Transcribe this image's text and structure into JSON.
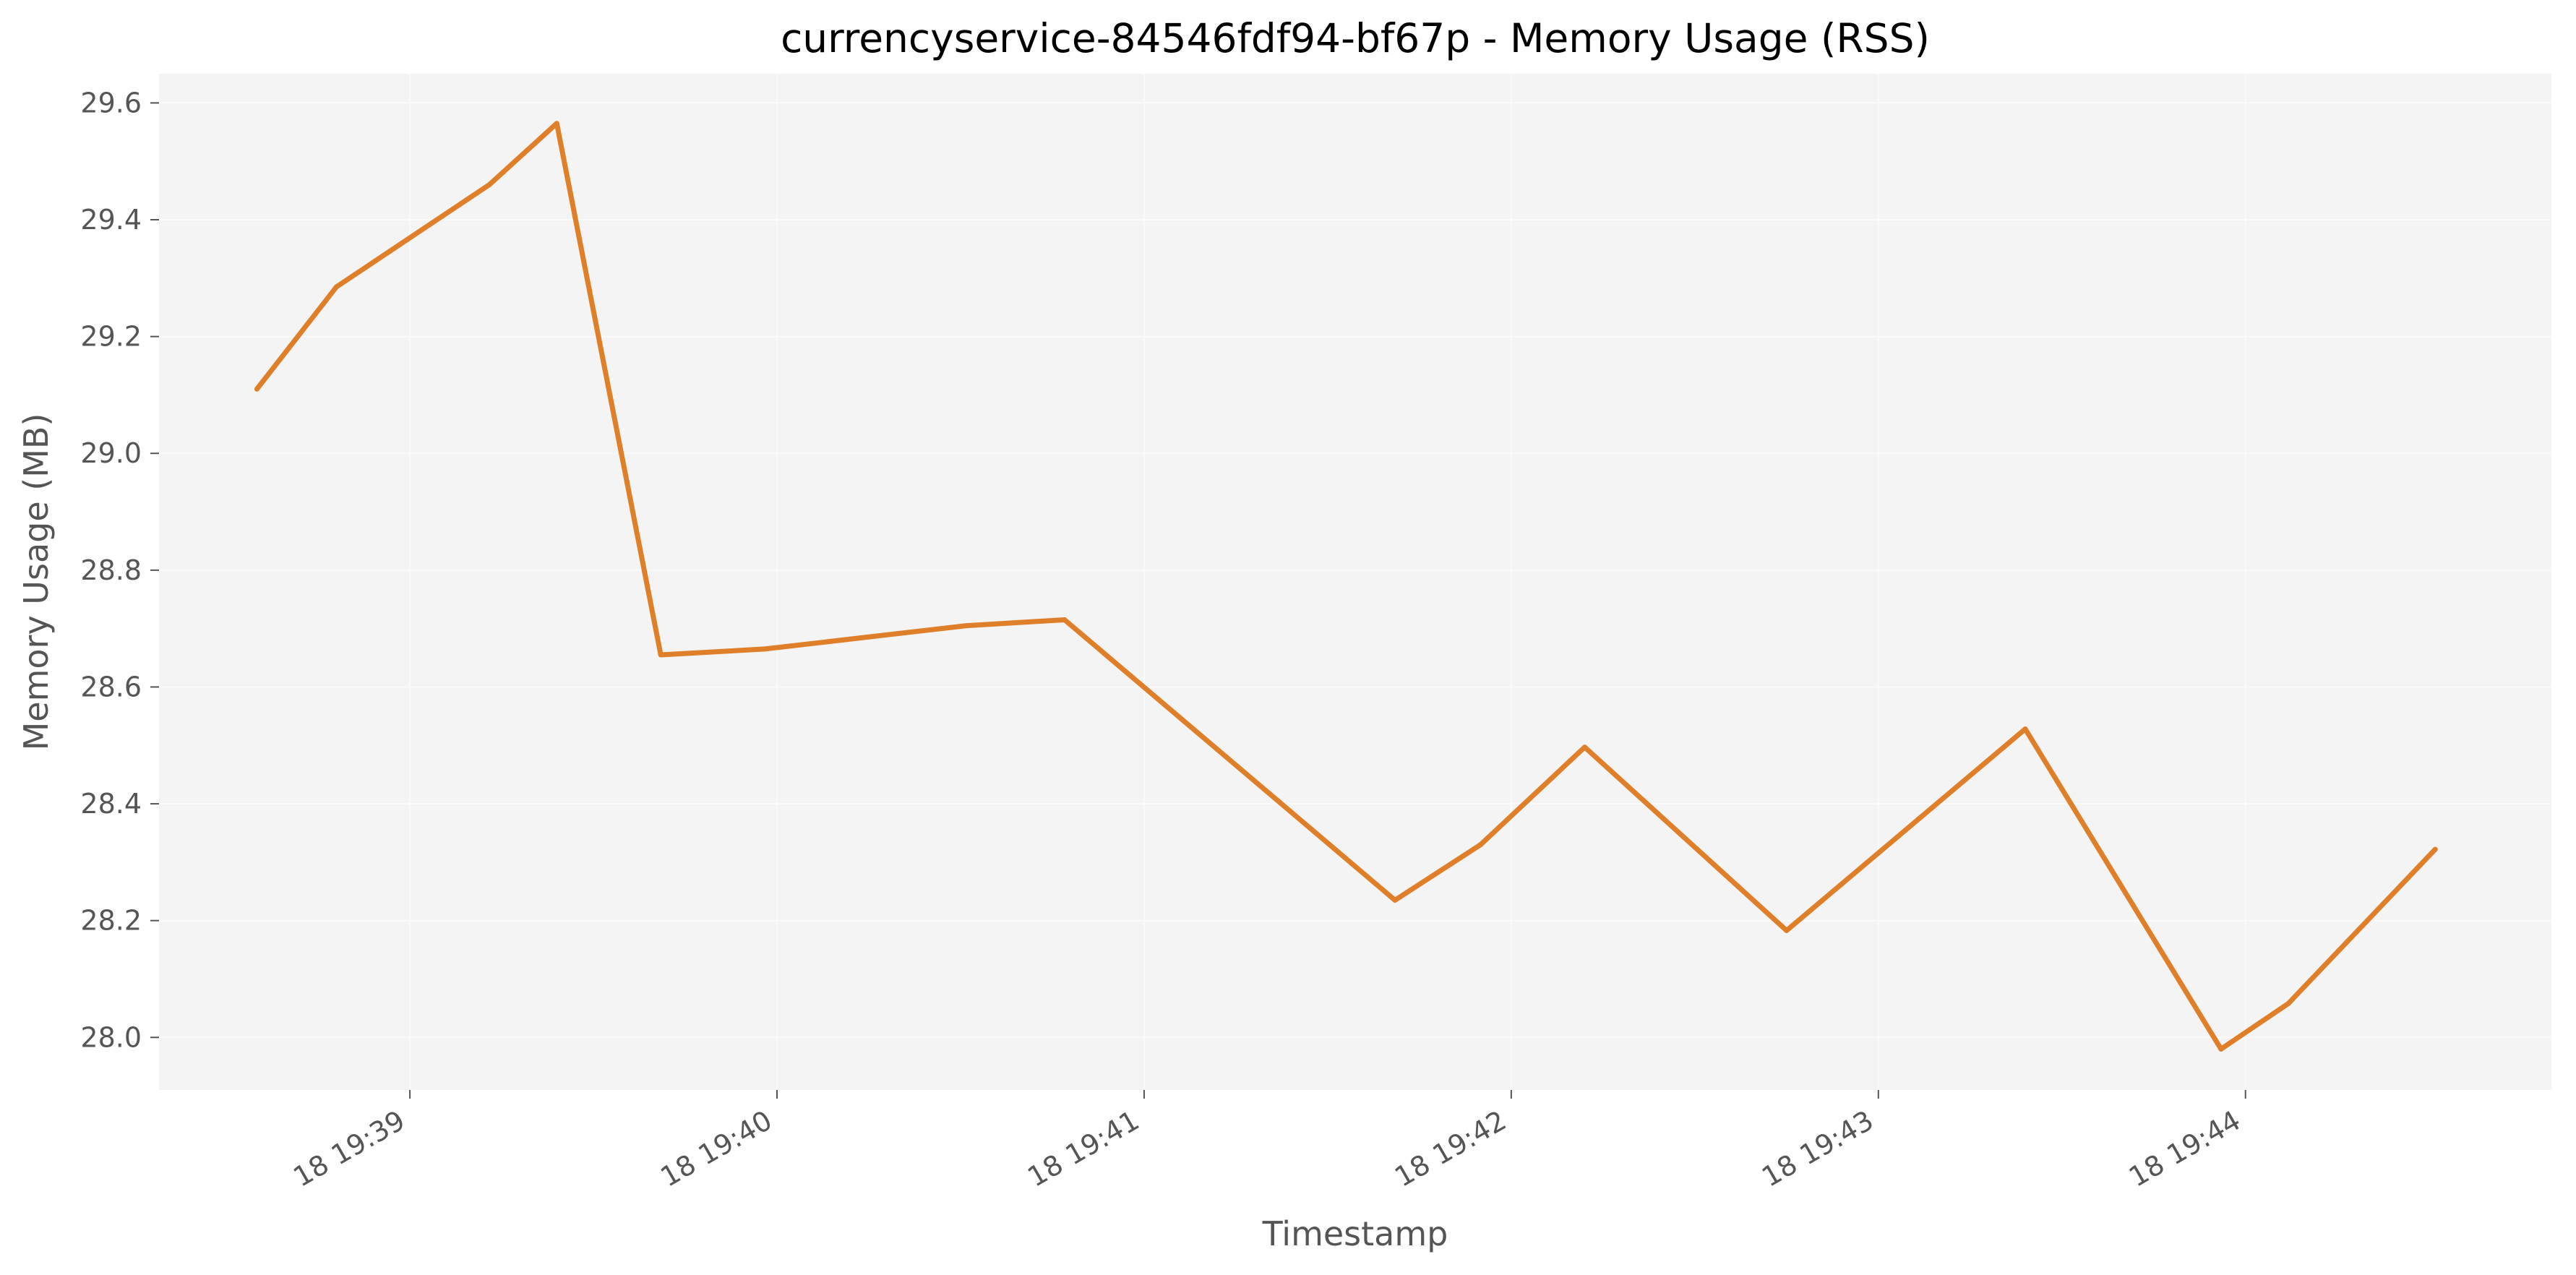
{
  "chart_data": {
    "type": "line",
    "title": "currencyservice-84546fdf94-bf67p - Memory Usage (RSS)",
    "xlabel": "Timestamp",
    "ylabel": "Memory Usage (MB)",
    "x_axis_type": "time",
    "x_tick_labels": [
      "18 19:39",
      "18 19:40",
      "18 19:41",
      "18 19:42",
      "18 19:43",
      "18 19:44"
    ],
    "x_ticks": [
      "19:39:00",
      "19:40:00",
      "19:41:00",
      "19:42:00",
      "19:43:00",
      "19:44:00"
    ],
    "xlim": [
      "19:38:19",
      "19:44:50"
    ],
    "y_ticks": [
      28.0,
      28.2,
      28.4,
      28.6,
      28.8,
      29.0,
      29.2,
      29.4,
      29.6
    ],
    "ylim": [
      27.91,
      29.65
    ],
    "grid": true,
    "legend": "none",
    "series": [
      {
        "color": "#e07f2a",
        "points": [
          {
            "x": "19:38:35",
            "y": 29.11
          },
          {
            "x": "19:38:48",
            "y": 29.285
          },
          {
            "x": "19:39:13",
            "y": 29.46
          },
          {
            "x": "19:39:24",
            "y": 29.565
          },
          {
            "x": "19:39:41",
            "y": 28.655
          },
          {
            "x": "19:39:58",
            "y": 28.665
          },
          {
            "x": "19:40:31",
            "y": 28.705
          },
          {
            "x": "19:40:47",
            "y": 28.715
          },
          {
            "x": "19:41:41",
            "y": 28.235
          },
          {
            "x": "19:41:55",
            "y": 28.33
          },
          {
            "x": "19:42:12",
            "y": 28.497
          },
          {
            "x": "19:42:45",
            "y": 28.183
          },
          {
            "x": "19:43:24",
            "y": 28.528
          },
          {
            "x": "19:43:56",
            "y": 27.98
          },
          {
            "x": "19:44:07",
            "y": 28.058
          },
          {
            "x": "19:44:31",
            "y": 28.322
          }
        ]
      }
    ]
  },
  "style": {
    "plot_background": "#f4f4f4",
    "grid_color": "#fafafa",
    "text_color": "#555555"
  }
}
